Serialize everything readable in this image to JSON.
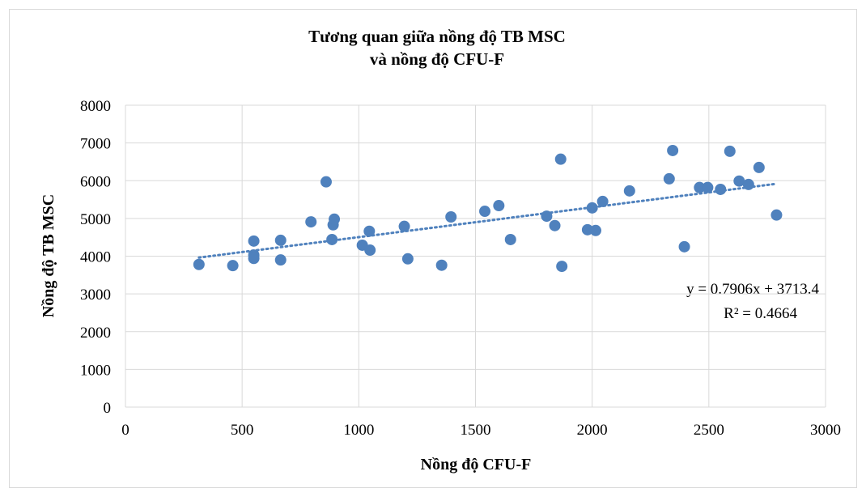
{
  "chart_data": {
    "type": "scatter",
    "title": [
      "Tương quan giữa nồng độ TB MSC",
      "và nồng độ CFU-F"
    ],
    "x_label": "Nồng độ CFU-F",
    "y_label": "Nồng độ TB MSC",
    "x": [
      315,
      460,
      550,
      550,
      550,
      665,
      665,
      795,
      860,
      885,
      890,
      895,
      1015,
      1045,
      1048,
      1195,
      1210,
      1355,
      1395,
      1540,
      1600,
      1650,
      1805,
      1840,
      1865,
      1870,
      1980,
      2000,
      2015,
      2045,
      2160,
      2330,
      2345,
      2395,
      2460,
      2495,
      2550,
      2590,
      2630,
      2670,
      2715,
      2790
    ],
    "values": [
      3780,
      3750,
      4400,
      4030,
      3940,
      4420,
      3900,
      4910,
      5970,
      4440,
      4830,
      4980,
      4290,
      4660,
      4160,
      4790,
      3930,
      3760,
      5040,
      5190,
      5340,
      4440,
      5060,
      4810,
      6570,
      3730,
      4700,
      5280,
      4680,
      5450,
      5730,
      6050,
      6800,
      4250,
      5820,
      5820,
      5770,
      6780,
      5990,
      5900,
      6350,
      5090
    ],
    "color": "#4f81bd",
    "trendline": {
      "slope": 0.7906,
      "intercept": 3713.4,
      "color": "#4f81bd"
    },
    "annotations": [
      "y = 0.7906x + 3713.4",
      "R² = 0.4664"
    ],
    "xlim": [
      0,
      3000
    ],
    "xticks": [
      0,
      500,
      1000,
      1500,
      2000,
      2500,
      3000
    ],
    "ylim": [
      0,
      8000
    ],
    "yticks": [
      0,
      1000,
      2000,
      3000,
      4000,
      5000,
      6000,
      7000,
      8000
    ],
    "grid": true
  }
}
